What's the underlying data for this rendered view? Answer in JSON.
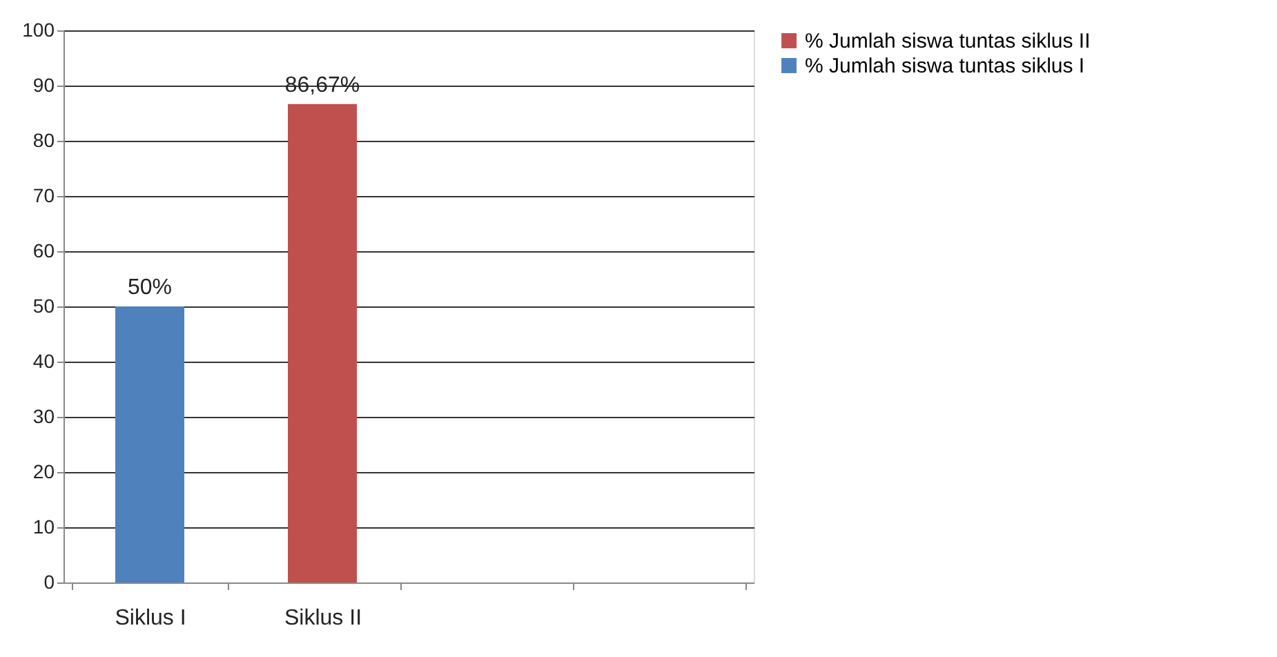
{
  "chart_data": {
    "type": "bar",
    "categories": [
      "Siklus I",
      "Siklus II",
      null,
      null
    ],
    "series": [
      {
        "name": "% Jumlah siswa tuntas siklus II",
        "color": "#c0504d",
        "values": [
          null,
          86.67,
          null,
          null
        ],
        "value_labels": [
          null,
          "86,67%",
          null,
          null
        ]
      },
      {
        "name": "% Jumlah siswa tuntas siklus I",
        "color": "#4f81bd",
        "values": [
          50,
          null,
          null,
          null
        ],
        "value_labels": [
          "50%",
          null,
          null,
          null
        ]
      }
    ],
    "ylim": [
      0,
      100
    ],
    "yticks": [
      0,
      10,
      20,
      30,
      40,
      50,
      60,
      70,
      80,
      90,
      100
    ],
    "grid": "y",
    "legend": "right"
  }
}
